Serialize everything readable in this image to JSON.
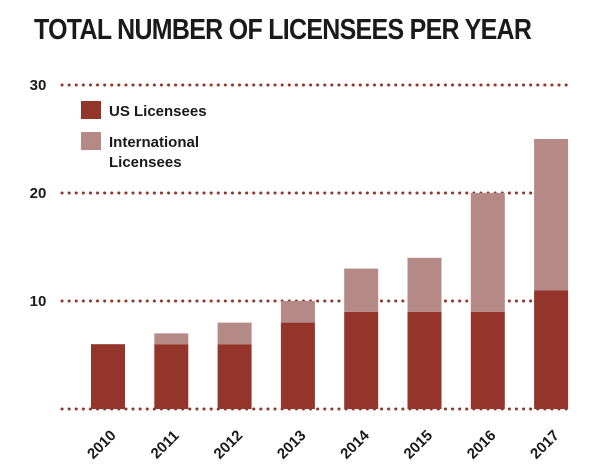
{
  "title": "TOTAL NUMBER OF LICENSEES PER YEAR",
  "colors": {
    "us": "#93352a",
    "international": "#b48986",
    "grid": "#93352a"
  },
  "chart_data": {
    "type": "bar",
    "stacked": true,
    "categories": [
      "2010",
      "2011",
      "2012",
      "2013",
      "2014",
      "2015",
      "2016",
      "2017"
    ],
    "series": [
      {
        "name": "US Licensees",
        "values": [
          6,
          6,
          6,
          8,
          9,
          9,
          9,
          11
        ]
      },
      {
        "name": "International Licensees",
        "values": [
          0,
          1,
          2,
          2,
          4,
          5,
          11,
          14
        ]
      }
    ],
    "ylim": [
      0,
      30
    ],
    "yticks": [
      "10",
      "20",
      "30"
    ],
    "grid": true,
    "legend_position": "top-left"
  }
}
